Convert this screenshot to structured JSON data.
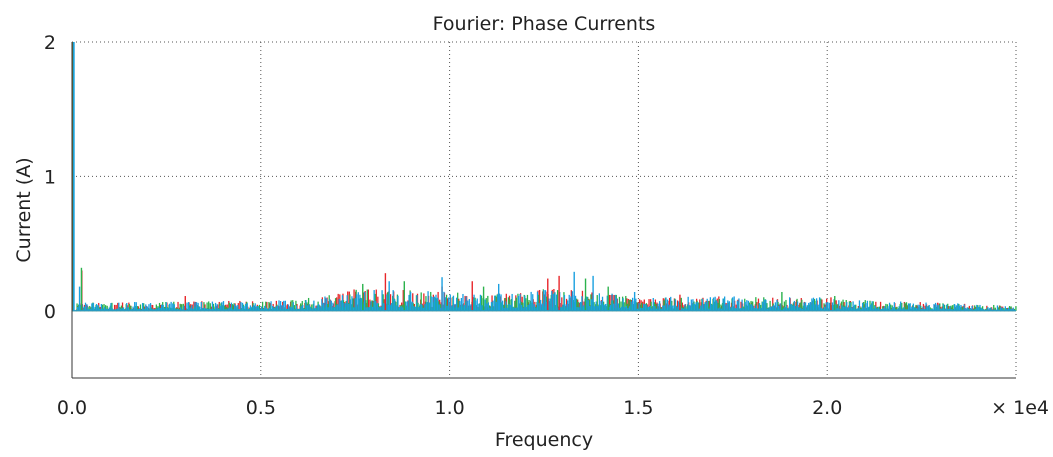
{
  "chart_data": {
    "type": "bar",
    "title": "Fourier: Phase Currents",
    "xlabel": "Frequency",
    "ylabel": "Current (A)",
    "x_multiplier_label": "× 1e4",
    "xlim": [
      0,
      2.5
    ],
    "ylim": [
      -0.5,
      2
    ],
    "x_ticks": [
      0.0,
      0.5,
      1.0,
      1.5,
      2.0
    ],
    "x_tick_labels": [
      "0.0",
      "0.5",
      "1.0",
      "1.5",
      "2.0"
    ],
    "y_ticks": [
      0,
      1,
      2
    ],
    "y_tick_labels": [
      "0",
      "1",
      "2"
    ],
    "grid": true,
    "grid_style": "dotted",
    "legend": "none",
    "series": [
      {
        "color": "#e8262a",
        "peaks": [
          [
            0.003,
            2.0
          ],
          [
            0.026,
            0.3
          ],
          [
            0.3,
            0.11
          ],
          [
            0.83,
            0.28
          ],
          [
            0.98,
            0.18
          ],
          [
            1.06,
            0.22
          ],
          [
            1.26,
            0.24
          ],
          [
            1.29,
            0.26
          ],
          [
            1.61,
            0.12
          ],
          [
            2.01,
            0.1
          ]
        ]
      },
      {
        "color": "#2bb24c",
        "peaks": [
          [
            0.004,
            2.0
          ],
          [
            0.025,
            0.32
          ],
          [
            0.77,
            0.2
          ],
          [
            0.88,
            0.22
          ],
          [
            1.09,
            0.18
          ],
          [
            1.36,
            0.24
          ],
          [
            1.42,
            0.18
          ],
          [
            1.88,
            0.14
          ],
          [
            2.02,
            0.11
          ]
        ]
      },
      {
        "color": "#1aa0e0",
        "peaks": [
          [
            0.005,
            2.0
          ],
          [
            0.02,
            0.18
          ],
          [
            0.84,
            0.22
          ],
          [
            0.98,
            0.25
          ],
          [
            1.13,
            0.2
          ],
          [
            1.33,
            0.29
          ],
          [
            1.38,
            0.26
          ],
          [
            1.49,
            0.14
          ],
          [
            1.98,
            0.1
          ]
        ]
      }
    ],
    "noise_envelope": [
      [
        0,
        0.06
      ],
      [
        0.3,
        0.07
      ],
      [
        0.6,
        0.08
      ],
      [
        0.75,
        0.17
      ],
      [
        0.85,
        0.16
      ],
      [
        1.0,
        0.14
      ],
      [
        1.1,
        0.12
      ],
      [
        1.25,
        0.17
      ],
      [
        1.4,
        0.14
      ],
      [
        1.5,
        0.1
      ],
      [
        1.7,
        0.11
      ],
      [
        1.95,
        0.1
      ],
      [
        2.1,
        0.08
      ],
      [
        2.3,
        0.06
      ],
      [
        2.5,
        0.04
      ]
    ]
  }
}
